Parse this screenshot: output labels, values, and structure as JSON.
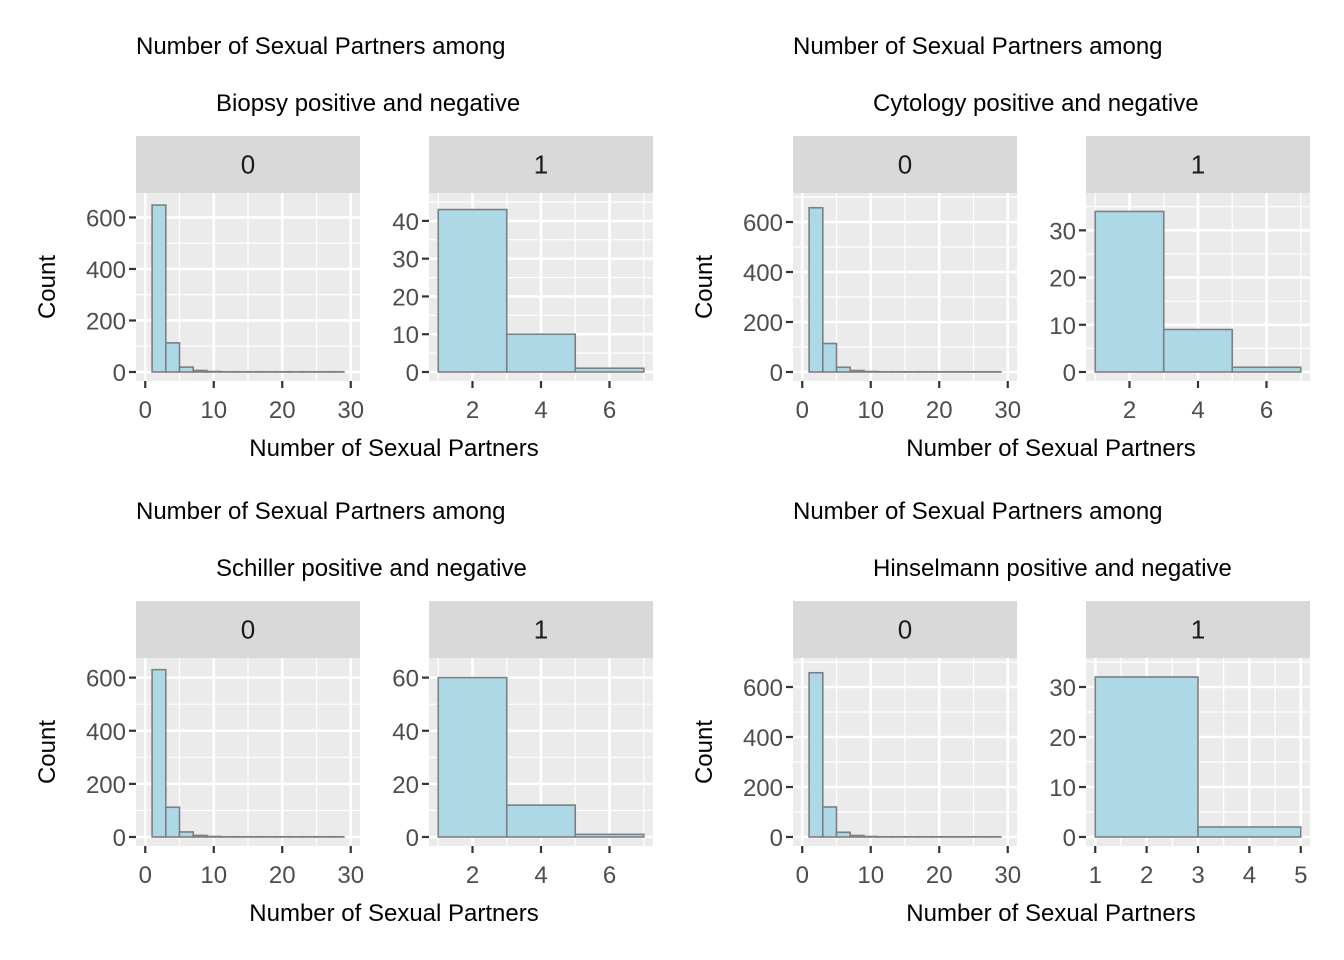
{
  "style": {
    "bar_fill": "#add8e6",
    "bar_stroke": "#7f7f7f",
    "panel_bg": "#ebebeb",
    "strip_bg": "#d9d9d9"
  },
  "chart_data": [
    {
      "type": "bar",
      "title_line1": "Number of Sexual Partners among",
      "title_line2": "Biopsy positive and negative",
      "xlabel": "Number of Sexual Partners",
      "ylabel": "Count",
      "facets": [
        {
          "label": "0",
          "xlim": [
            0,
            30
          ],
          "ylim": [
            0,
            660
          ],
          "xticks": [
            0,
            10,
            20,
            30
          ],
          "yticks": [
            0,
            200,
            400,
            600
          ],
          "bins": [
            {
              "x0": 1,
              "x1": 3,
              "count": 648
            },
            {
              "x0": 3,
              "x1": 5,
              "count": 113
            },
            {
              "x0": 5,
              "x1": 7,
              "count": 19
            },
            {
              "x0": 7,
              "x1": 9,
              "count": 6
            },
            {
              "x0": 9,
              "x1": 11,
              "count": 2
            },
            {
              "x0": 11,
              "x1": 13,
              "count": 1
            },
            {
              "x0": 13,
              "x1": 15,
              "count": 1
            },
            {
              "x0": 15,
              "x1": 17,
              "count": 1
            },
            {
              "x0": 17,
              "x1": 19,
              "count": 1
            },
            {
              "x0": 19,
              "x1": 21,
              "count": 1
            },
            {
              "x0": 21,
              "x1": 23,
              "count": 1
            },
            {
              "x0": 23,
              "x1": 25,
              "count": 1
            },
            {
              "x0": 25,
              "x1": 27,
              "count": 1
            },
            {
              "x0": 27,
              "x1": 29,
              "count": 1
            }
          ]
        },
        {
          "label": "1",
          "xlim": [
            1,
            7
          ],
          "ylim": [
            0,
            45
          ],
          "xticks": [
            2,
            4,
            6
          ],
          "yticks": [
            0,
            10,
            20,
            30,
            40
          ],
          "bins": [
            {
              "x0": 1,
              "x1": 3,
              "count": 43
            },
            {
              "x0": 3,
              "x1": 5,
              "count": 10
            },
            {
              "x0": 5,
              "x1": 7,
              "count": 1
            }
          ]
        }
      ]
    },
    {
      "type": "bar",
      "title_line1": "Number of Sexual Partners among",
      "title_line2": "Cytology positive and negative",
      "xlabel": "Number of Sexual Partners",
      "ylabel": "Count",
      "facets": [
        {
          "label": "0",
          "xlim": [
            0,
            30
          ],
          "ylim": [
            0,
            680
          ],
          "xticks": [
            0,
            10,
            20,
            30
          ],
          "yticks": [
            0,
            200,
            400,
            600
          ],
          "bins": [
            {
              "x0": 1,
              "x1": 3,
              "count": 657
            },
            {
              "x0": 3,
              "x1": 5,
              "count": 114
            },
            {
              "x0": 5,
              "x1": 7,
              "count": 19
            },
            {
              "x0": 7,
              "x1": 9,
              "count": 6
            },
            {
              "x0": 9,
              "x1": 11,
              "count": 2
            },
            {
              "x0": 11,
              "x1": 13,
              "count": 1
            },
            {
              "x0": 13,
              "x1": 15,
              "count": 1
            },
            {
              "x0": 15,
              "x1": 17,
              "count": 1
            },
            {
              "x0": 17,
              "x1": 19,
              "count": 1
            },
            {
              "x0": 19,
              "x1": 21,
              "count": 1
            },
            {
              "x0": 21,
              "x1": 23,
              "count": 1
            },
            {
              "x0": 23,
              "x1": 25,
              "count": 1
            },
            {
              "x0": 25,
              "x1": 27,
              "count": 1
            },
            {
              "x0": 27,
              "x1": 29,
              "count": 1
            }
          ]
        },
        {
          "label": "1",
          "xlim": [
            1,
            7
          ],
          "ylim": [
            0,
            36
          ],
          "xticks": [
            2,
            4,
            6
          ],
          "yticks": [
            0,
            10,
            20,
            30
          ],
          "bins": [
            {
              "x0": 1,
              "x1": 3,
              "count": 34
            },
            {
              "x0": 3,
              "x1": 5,
              "count": 9
            },
            {
              "x0": 5,
              "x1": 7,
              "count": 1
            }
          ]
        }
      ]
    },
    {
      "type": "bar",
      "title_line1": "Number of Sexual Partners among",
      "title_line2": "Schiller positive and negative",
      "xlabel": "Number of Sexual Partners",
      "ylabel": "Count",
      "facets": [
        {
          "label": "0",
          "xlim": [
            0,
            30
          ],
          "ylim": [
            0,
            640
          ],
          "xticks": [
            0,
            10,
            20,
            30
          ],
          "yticks": [
            0,
            200,
            400,
            600
          ],
          "bins": [
            {
              "x0": 1,
              "x1": 3,
              "count": 630
            },
            {
              "x0": 3,
              "x1": 5,
              "count": 112
            },
            {
              "x0": 5,
              "x1": 7,
              "count": 19
            },
            {
              "x0": 7,
              "x1": 9,
              "count": 6
            },
            {
              "x0": 9,
              "x1": 11,
              "count": 2
            },
            {
              "x0": 11,
              "x1": 13,
              "count": 1
            },
            {
              "x0": 13,
              "x1": 15,
              "count": 1
            },
            {
              "x0": 15,
              "x1": 17,
              "count": 1
            },
            {
              "x0": 17,
              "x1": 19,
              "count": 1
            },
            {
              "x0": 19,
              "x1": 21,
              "count": 1
            },
            {
              "x0": 21,
              "x1": 23,
              "count": 1
            },
            {
              "x0": 23,
              "x1": 25,
              "count": 1
            },
            {
              "x0": 25,
              "x1": 27,
              "count": 1
            },
            {
              "x0": 27,
              "x1": 29,
              "count": 1
            }
          ]
        },
        {
          "label": "1",
          "xlim": [
            1,
            7
          ],
          "ylim": [
            0,
            64
          ],
          "xticks": [
            2,
            4,
            6
          ],
          "yticks": [
            0,
            20,
            40,
            60
          ],
          "bins": [
            {
              "x0": 1,
              "x1": 3,
              "count": 60
            },
            {
              "x0": 3,
              "x1": 5,
              "count": 12
            },
            {
              "x0": 5,
              "x1": 7,
              "count": 1
            }
          ]
        }
      ]
    },
    {
      "type": "bar",
      "title_line1": "Number of Sexual Partners among",
      "title_line2": "Hinselmann positive and negative",
      "xlabel": "Number of Sexual Partners",
      "ylabel": "Count",
      "facets": [
        {
          "label": "0",
          "xlim": [
            0,
            30
          ],
          "ylim": [
            0,
            680
          ],
          "xticks": [
            0,
            10,
            20,
            30
          ],
          "yticks": [
            0,
            200,
            400,
            600
          ],
          "bins": [
            {
              "x0": 1,
              "x1": 3,
              "count": 657
            },
            {
              "x0": 3,
              "x1": 5,
              "count": 120
            },
            {
              "x0": 5,
              "x1": 7,
              "count": 19
            },
            {
              "x0": 7,
              "x1": 9,
              "count": 6
            },
            {
              "x0": 9,
              "x1": 11,
              "count": 2
            },
            {
              "x0": 11,
              "x1": 13,
              "count": 1
            },
            {
              "x0": 13,
              "x1": 15,
              "count": 1
            },
            {
              "x0": 15,
              "x1": 17,
              "count": 1
            },
            {
              "x0": 17,
              "x1": 19,
              "count": 1
            },
            {
              "x0": 19,
              "x1": 21,
              "count": 1
            },
            {
              "x0": 21,
              "x1": 23,
              "count": 1
            },
            {
              "x0": 23,
              "x1": 25,
              "count": 1
            },
            {
              "x0": 25,
              "x1": 27,
              "count": 1
            },
            {
              "x0": 27,
              "x1": 29,
              "count": 1
            }
          ]
        },
        {
          "label": "1",
          "xlim": [
            1,
            5
          ],
          "ylim": [
            0,
            34
          ],
          "xticks": [
            1,
            2,
            3,
            4,
            5
          ],
          "yticks": [
            0,
            10,
            20,
            30
          ],
          "bins": [
            {
              "x0": 1,
              "x1": 3,
              "count": 32
            },
            {
              "x0": 3,
              "x1": 5,
              "count": 2
            }
          ]
        }
      ]
    }
  ]
}
